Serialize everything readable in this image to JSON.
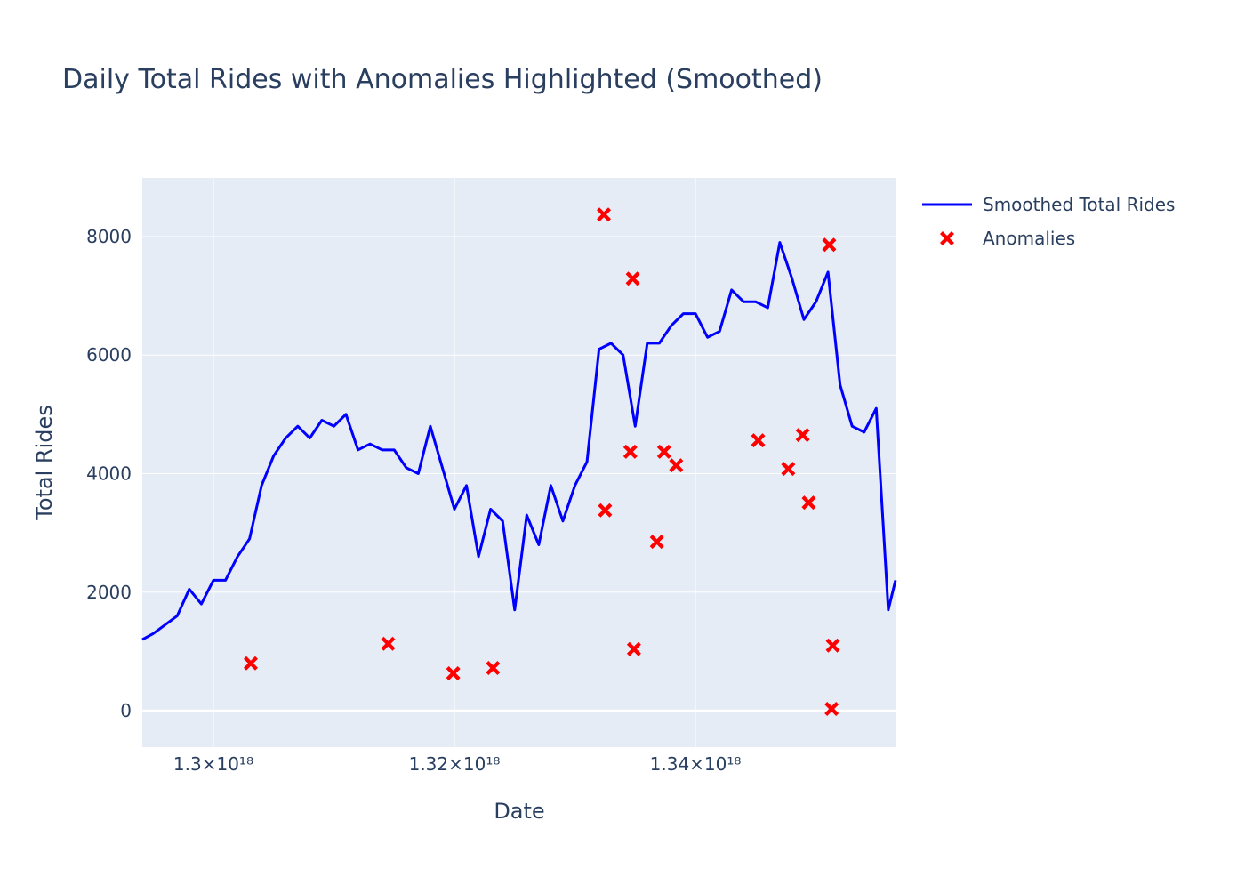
{
  "chart_data": {
    "type": "line",
    "title": "Daily Total Rides with Anomalies Highlighted (Smoothed)",
    "x_label": "Date",
    "y_label": "Total Rides",
    "xlim": [
      1.2941e+18,
      1.3566e+18
    ],
    "ylim": [
      -615,
      8990
    ],
    "xticks": [
      {
        "value": 1.3e+18,
        "label": "1.3×10¹⁸"
      },
      {
        "value": 1.32e+18,
        "label": "1.32×10¹⁸"
      },
      {
        "value": 1.34e+18,
        "label": "1.34×10¹⁸"
      }
    ],
    "yticks": [
      0,
      2000,
      4000,
      6000,
      8000
    ],
    "grid": true,
    "legend": "right",
    "series": [
      {
        "name": "Smoothed Total Rides",
        "color": "#0000ff",
        "mode": "lines",
        "x": [
          1.2941e+18,
          1.295e+18,
          1.296e+18,
          1.297e+18,
          1.298e+18,
          1.299e+18,
          1.3e+18,
          1.301e+18,
          1.302e+18,
          1.303e+18,
          1.304e+18,
          1.305e+18,
          1.306e+18,
          1.307e+18,
          1.308e+18,
          1.309e+18,
          1.31e+18,
          1.311e+18,
          1.312e+18,
          1.313e+18,
          1.314e+18,
          1.315e+18,
          1.316e+18,
          1.317e+18,
          1.318e+18,
          1.319e+18,
          1.32e+18,
          1.321e+18,
          1.322e+18,
          1.323e+18,
          1.324e+18,
          1.325e+18,
          1.326e+18,
          1.327e+18,
          1.328e+18,
          1.329e+18,
          1.33e+18,
          1.331e+18,
          1.332e+18,
          1.333e+18,
          1.334e+18,
          1.335e+18,
          1.336e+18,
          1.337e+18,
          1.338e+18,
          1.339e+18,
          1.34e+18,
          1.341e+18,
          1.342e+18,
          1.343e+18,
          1.344e+18,
          1.345e+18,
          1.346e+18,
          1.347e+18,
          1.348e+18,
          1.349e+18,
          1.35e+18,
          1.351e+18,
          1.352e+18,
          1.353e+18,
          1.354e+18,
          1.355e+18,
          1.356e+18,
          1.3566e+18
        ],
        "values": [
          1200,
          1300,
          1450,
          1600,
          2050,
          1800,
          2200,
          2200,
          2600,
          2900,
          3800,
          4300,
          4600,
          4800,
          4600,
          4900,
          4800,
          5000,
          4400,
          4500,
          4400,
          4400,
          4100,
          4000,
          4800,
          4100,
          3400,
          3800,
          2600,
          3400,
          3200,
          1700,
          3300,
          2800,
          3800,
          3200,
          3800,
          4200,
          6100,
          6200,
          6000,
          4800,
          6200,
          6200,
          6500,
          6700,
          6700,
          6300,
          6400,
          7100,
          6900,
          6900,
          6800,
          7900,
          7300,
          6600,
          6900,
          7400,
          5500,
          4800,
          4700,
          5100,
          1700,
          2200
        ]
      },
      {
        "name": "Anomalies",
        "color": "#ff0000",
        "mode": "markers",
        "marker_symbol": "x",
        "x": [
          1.3031e+18,
          1.3145e+18,
          1.3199e+18,
          1.3232e+18,
          1.3324e+18,
          1.3325e+18,
          1.3348e+18,
          1.3346e+18,
          1.3349e+18,
          1.3368e+18,
          1.3374e+18,
          1.3384e+18,
          1.3452e+18,
          1.3477e+18,
          1.3489e+18,
          1.3494e+18,
          1.3511e+18,
          1.3514e+18,
          1.3513e+18
        ],
        "values": [
          800,
          1130,
          630,
          720,
          8370,
          3380,
          7290,
          4370,
          1040,
          2850,
          4370,
          4140,
          4560,
          4080,
          4650,
          3510,
          7860,
          1100,
          30
        ]
      }
    ]
  }
}
